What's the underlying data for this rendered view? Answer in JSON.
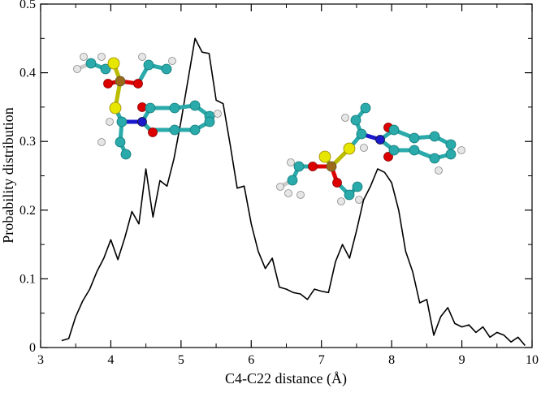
{
  "chart_data": {
    "type": "line",
    "xlabel": "C4-C22  distance (Å)",
    "ylabel": "Probability distribution",
    "xlim": [
      3,
      10
    ],
    "ylim": [
      0,
      0.5
    ],
    "x_ticks": [
      "3",
      "4",
      "5",
      "6",
      "7",
      "8",
      "9",
      "10"
    ],
    "y_ticks": [
      "0",
      "0.1",
      "0.2",
      "0.3",
      "0.4",
      "0.5"
    ],
    "grid": false,
    "legend": "none",
    "line_color": "#000000",
    "series": [
      {
        "x": [
          3.3,
          3.4,
          3.5,
          3.6,
          3.7,
          3.8,
          3.9,
          4.0,
          4.1,
          4.2,
          4.3,
          4.4,
          4.5,
          4.6,
          4.7,
          4.8,
          4.9,
          5.0,
          5.1,
          5.2,
          5.3,
          5.4,
          5.5,
          5.6,
          5.7,
          5.8,
          5.9,
          6.0,
          6.1,
          6.2,
          6.3,
          6.4,
          6.5,
          6.6,
          6.7,
          6.8,
          6.9,
          7.0,
          7.1,
          7.2,
          7.3,
          7.4,
          7.5,
          7.6,
          7.7,
          7.8,
          7.9,
          8.0,
          8.1,
          8.2,
          8.3,
          8.4,
          8.5,
          8.6,
          8.7,
          8.8,
          8.9,
          9.0,
          9.1,
          9.2,
          9.3,
          9.4,
          9.5,
          9.6,
          9.7,
          9.8,
          9.9
        ],
        "values": [
          0.01,
          0.013,
          0.045,
          0.068,
          0.085,
          0.11,
          0.13,
          0.157,
          0.128,
          0.16,
          0.198,
          0.18,
          0.26,
          0.19,
          0.243,
          0.235,
          0.275,
          0.33,
          0.39,
          0.45,
          0.43,
          0.428,
          0.36,
          0.355,
          0.295,
          0.232,
          0.235,
          0.18,
          0.14,
          0.115,
          0.13,
          0.088,
          0.085,
          0.08,
          0.078,
          0.07,
          0.085,
          0.082,
          0.08,
          0.125,
          0.15,
          0.13,
          0.17,
          0.215,
          0.235,
          0.26,
          0.255,
          0.24,
          0.2,
          0.14,
          0.11,
          0.065,
          0.07,
          0.018,
          0.045,
          0.058,
          0.035,
          0.03,
          0.033,
          0.022,
          0.03,
          0.015,
          0.022,
          0.018,
          0.008,
          0.015,
          0.003
        ]
      }
    ]
  },
  "insets": [
    {
      "id": "molecule-1",
      "description_icon": "ball-and-stick-molecule"
    },
    {
      "id": "molecule-2",
      "description_icon": "ball-and-stick-molecule"
    }
  ],
  "atom_colors": {
    "carbon": "#2aaaaa",
    "hydrogen": "#e6e6e6",
    "sulfur": "#e6e600",
    "oxygen": "#dd0000",
    "nitrogen": "#1a1acc",
    "phosphorus": "#9a6a1a"
  }
}
